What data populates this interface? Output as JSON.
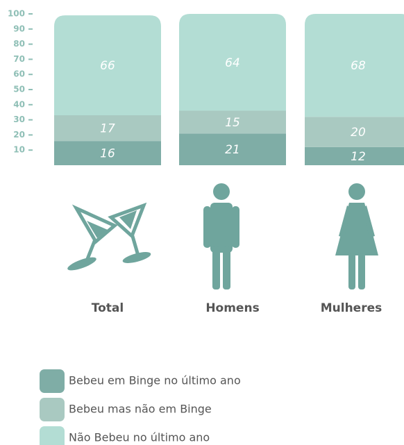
{
  "chart_data": {
    "type": "stacked-bar",
    "categories": [
      "Total",
      "Homens",
      "Mulheres"
    ],
    "series": [
      {
        "name": "Bebeu em Binge no último ano",
        "color": "#7fada6",
        "values": [
          16,
          21,
          12
        ]
      },
      {
        "name": "Bebeu mas não em Binge",
        "color": "#a9c9c1",
        "values": [
          17,
          15,
          20
        ]
      },
      {
        "name": "Não Bebeu no último ano",
        "color": "#b3ddd4",
        "values": [
          66,
          64,
          68
        ]
      }
    ],
    "ylim": [
      0,
      100
    ],
    "yticks": [
      10,
      20,
      30,
      40,
      50,
      60,
      70,
      80,
      90,
      100
    ]
  }
}
